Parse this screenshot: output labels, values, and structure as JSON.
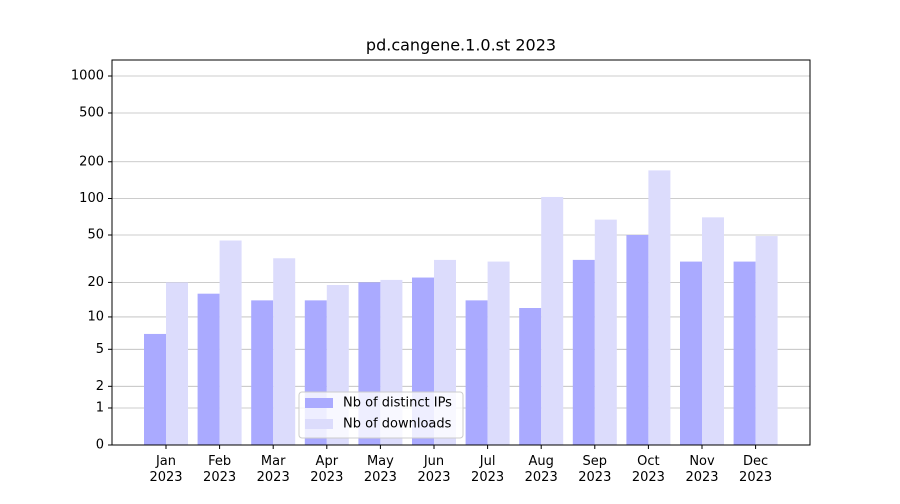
{
  "chart_data": {
    "type": "bar",
    "title": "pd.cangene.1.0.st 2023",
    "categories": [
      "Jan\n2023",
      "Feb\n2023",
      "Mar\n2023",
      "Apr\n2023",
      "May\n2023",
      "Jun\n2023",
      "Jul\n2023",
      "Aug\n2023",
      "Sep\n2023",
      "Oct\n2023",
      "Nov\n2023",
      "Dec\n2023"
    ],
    "series": [
      {
        "name": "Nb of distinct IPs",
        "color": "#aaaaff",
        "values": [
          7,
          16,
          14,
          14,
          20,
          22,
          14,
          12,
          31,
          50,
          30,
          30
        ]
      },
      {
        "name": "Nb of downloads",
        "color": "#dcdcfc",
        "values": [
          20,
          45,
          32,
          19,
          21,
          31,
          30,
          103,
          67,
          170,
          70,
          49
        ]
      }
    ],
    "yscale": "log1p",
    "ylim": [
      0,
      1350
    ],
    "yticks": [
      0,
      1,
      2,
      5,
      10,
      20,
      50,
      100,
      200,
      500,
      1000
    ],
    "grid": true,
    "legend": "lower center"
  }
}
